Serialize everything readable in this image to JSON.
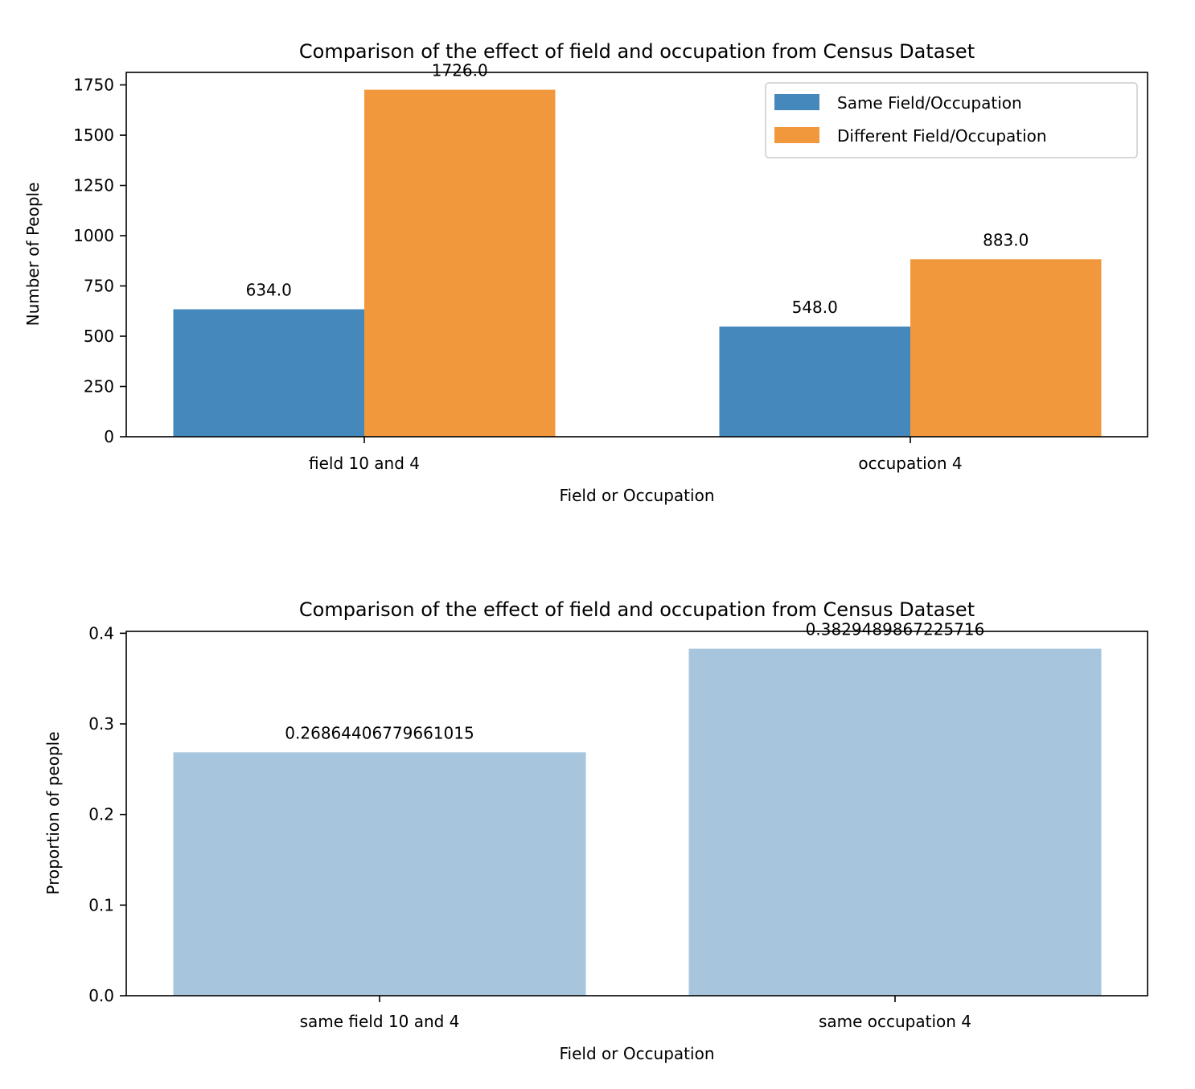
{
  "chart_data": [
    {
      "type": "bar",
      "title": "Comparison of the effect of field and occupation from Census Dataset",
      "xlabel": "Field or Occupation",
      "ylabel": "Number of People",
      "categories": [
        "field 10 and 4",
        "occupation 4"
      ],
      "series": [
        {
          "name": "Same Field/Occupation",
          "values": [
            634.0,
            548.0
          ],
          "labels": [
            "634.0",
            "548.0"
          ],
          "color": "#4589bc"
        },
        {
          "name": "Different Field/Occupation",
          "values": [
            1726.0,
            883.0
          ],
          "labels": [
            "1726.0",
            "883.0"
          ],
          "color": "#f1983c"
        }
      ],
      "ylim": [
        0,
        1812.3
      ],
      "yticks": [
        0,
        250,
        500,
        750,
        1000,
        1250,
        1500,
        1750
      ],
      "ytick_labels": [
        "0",
        "250",
        "500",
        "750",
        "1000",
        "1250",
        "1500",
        "1750"
      ],
      "grid": false,
      "legend_position": "top-right"
    },
    {
      "type": "bar",
      "title": "Comparison of the effect of field and occupation from Census Dataset",
      "xlabel": "Field or Occupation",
      "ylabel": "Proportion of people",
      "categories": [
        "same field 10 and 4",
        "same occupation 4"
      ],
      "series": [
        {
          "values": [
            0.26864406779661015,
            0.3829489867225716
          ],
          "labels": [
            "0.26864406779661015",
            "0.3829489867225716"
          ],
          "color": "#a7c5dd"
        }
      ],
      "ylim": [
        0,
        0.4021
      ],
      "yticks": [
        0.0,
        0.1,
        0.2,
        0.3,
        0.4
      ],
      "ytick_labels": [
        "0.0",
        "0.1",
        "0.2",
        "0.3",
        "0.4"
      ],
      "grid": false
    }
  ]
}
